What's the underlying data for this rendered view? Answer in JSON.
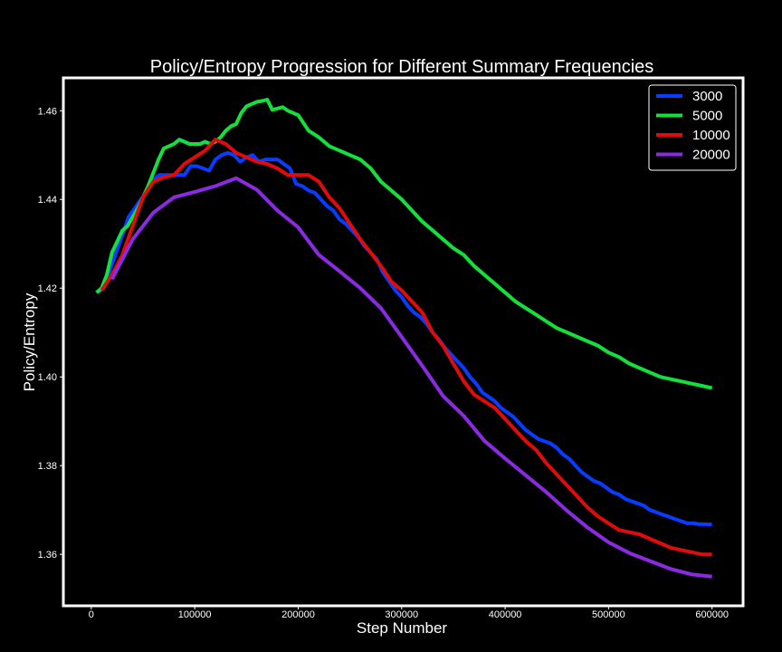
{
  "chart_data": {
    "type": "line",
    "title": "Policy/Entropy Progression for Different Summary Frequencies",
    "xlabel": "Step Number",
    "ylabel": "Policy/Entropy",
    "xlim": [
      -27000,
      630000
    ],
    "ylim": [
      1.3484,
      1.4674
    ],
    "x_ticks": [
      0,
      100000,
      200000,
      300000,
      400000,
      500000,
      600000
    ],
    "y_ticks": [
      1.36,
      1.38,
      1.4,
      1.42,
      1.44,
      1.46
    ],
    "grid": false,
    "legend_position": "top-right",
    "background": "#000000",
    "foreground": "#ffffff",
    "series": [
      {
        "name": "3000",
        "color": "#0a3cff",
        "x": [
          6000,
          12000,
          18000,
          24000,
          30000,
          36000,
          42000,
          48000,
          54000,
          60000,
          66000,
          72000,
          78000,
          84000,
          90000,
          96000,
          102000,
          108000,
          114000,
          120000,
          126000,
          132000,
          138000,
          144000,
          150000,
          156000,
          162000,
          168000,
          174000,
          180000,
          186000,
          192000,
          198000,
          204000,
          210000,
          216000,
          222000,
          228000,
          234000,
          240000,
          246000,
          252000,
          258000,
          264000,
          270000,
          276000,
          282000,
          288000,
          294000,
          300000,
          306000,
          312000,
          318000,
          324000,
          330000,
          336000,
          342000,
          348000,
          354000,
          360000,
          366000,
          372000,
          378000,
          384000,
          390000,
          396000,
          402000,
          408000,
          414000,
          420000,
          426000,
          432000,
          438000,
          444000,
          450000,
          456000,
          462000,
          468000,
          474000,
          480000,
          486000,
          492000,
          498000,
          504000,
          510000,
          516000,
          522000,
          528000,
          534000,
          540000,
          546000,
          552000,
          558000,
          564000,
          570000,
          576000,
          582000,
          588000,
          594000,
          600000
        ],
        "y": [
          1.419,
          1.42,
          1.424,
          1.428,
          1.432,
          1.436,
          1.438,
          1.44,
          1.442,
          1.4445,
          1.4455,
          1.4455,
          1.4455,
          1.4455,
          1.4455,
          1.4475,
          1.4475,
          1.447,
          1.4465,
          1.449,
          1.45,
          1.4505,
          1.45,
          1.4485,
          1.4495,
          1.45,
          1.4485,
          1.449,
          1.449,
          1.449,
          1.448,
          1.447,
          1.4435,
          1.443,
          1.442,
          1.4415,
          1.44,
          1.4385,
          1.4375,
          1.4355,
          1.4345,
          1.433,
          1.4315,
          1.4295,
          1.428,
          1.4265,
          1.4235,
          1.4215,
          1.4195,
          1.418,
          1.416,
          1.4145,
          1.4135,
          1.412,
          1.41,
          1.4085,
          1.4065,
          1.405,
          1.4035,
          1.402,
          1.4,
          1.3985,
          1.3965,
          1.3955,
          1.3945,
          1.393,
          1.392,
          1.391,
          1.3895,
          1.388,
          1.387,
          1.386,
          1.3855,
          1.385,
          1.384,
          1.3825,
          1.3815,
          1.38,
          1.3785,
          1.3775,
          1.3765,
          1.376,
          1.375,
          1.374,
          1.3735,
          1.3725,
          1.372,
          1.3715,
          1.371,
          1.37,
          1.3695,
          1.369,
          1.3685,
          1.368,
          1.3675,
          1.367,
          1.367,
          1.3668,
          1.3668,
          1.3667
        ]
      },
      {
        "name": "5000",
        "color": "#14e03c",
        "x": [
          5000,
          10000,
          15000,
          20000,
          25000,
          30000,
          35000,
          40000,
          45000,
          50000,
          55000,
          60000,
          65000,
          70000,
          75000,
          80000,
          85000,
          90000,
          95000,
          100000,
          105000,
          110000,
          115000,
          120000,
          125000,
          130000,
          135000,
          140000,
          145000,
          150000,
          155000,
          160000,
          165000,
          170000,
          175000,
          180000,
          185000,
          190000,
          195000,
          200000,
          210000,
          220000,
          230000,
          240000,
          250000,
          260000,
          270000,
          280000,
          290000,
          300000,
          310000,
          320000,
          330000,
          340000,
          350000,
          360000,
          370000,
          380000,
          390000,
          400000,
          410000,
          420000,
          430000,
          440000,
          450000,
          460000,
          470000,
          480000,
          490000,
          500000,
          510000,
          520000,
          530000,
          540000,
          550000,
          560000,
          570000,
          580000,
          590000,
          600000
        ],
        "y": [
          1.419,
          1.42,
          1.423,
          1.428,
          1.4305,
          1.433,
          1.434,
          1.436,
          1.438,
          1.4405,
          1.443,
          1.446,
          1.449,
          1.4515,
          1.452,
          1.4525,
          1.4535,
          1.453,
          1.4525,
          1.4525,
          1.4525,
          1.453,
          1.4525,
          1.453,
          1.454,
          1.4555,
          1.4565,
          1.457,
          1.4595,
          1.461,
          1.4615,
          1.462,
          1.4622,
          1.4625,
          1.4602,
          1.4605,
          1.4608,
          1.46,
          1.4595,
          1.459,
          1.4555,
          1.454,
          1.452,
          1.451,
          1.45,
          1.449,
          1.447,
          1.444,
          1.442,
          1.44,
          1.4375,
          1.435,
          1.433,
          1.431,
          1.429,
          1.4275,
          1.425,
          1.423,
          1.421,
          1.419,
          1.417,
          1.4155,
          1.414,
          1.4125,
          1.411,
          1.41,
          1.409,
          1.408,
          1.407,
          1.4055,
          1.4045,
          1.403,
          1.402,
          1.401,
          1.4,
          1.3995,
          1.399,
          1.3985,
          1.398,
          1.3975
        ]
      },
      {
        "name": "10000",
        "color": "#e00c0c",
        "x": [
          10000,
          20000,
          30000,
          40000,
          50000,
          60000,
          70000,
          80000,
          90000,
          100000,
          110000,
          120000,
          130000,
          140000,
          150000,
          160000,
          170000,
          180000,
          190000,
          200000,
          210000,
          220000,
          230000,
          240000,
          250000,
          260000,
          270000,
          280000,
          290000,
          300000,
          310000,
          320000,
          330000,
          340000,
          350000,
          360000,
          370000,
          380000,
          390000,
          400000,
          410000,
          420000,
          430000,
          440000,
          450000,
          460000,
          470000,
          480000,
          490000,
          500000,
          510000,
          520000,
          530000,
          540000,
          550000,
          560000,
          570000,
          580000,
          590000,
          600000
        ],
        "y": [
          1.4195,
          1.423,
          1.4275,
          1.434,
          1.4405,
          1.444,
          1.445,
          1.4455,
          1.448,
          1.4495,
          1.451,
          1.4535,
          1.4525,
          1.4505,
          1.4495,
          1.4485,
          1.448,
          1.447,
          1.4455,
          1.4455,
          1.4455,
          1.444,
          1.4405,
          1.438,
          1.4345,
          1.431,
          1.428,
          1.425,
          1.4215,
          1.4195,
          1.417,
          1.4145,
          1.41,
          1.407,
          1.403,
          1.399,
          1.396,
          1.3945,
          1.393,
          1.3905,
          1.388,
          1.3855,
          1.3835,
          1.3805,
          1.378,
          1.3755,
          1.373,
          1.3705,
          1.3685,
          1.367,
          1.3655,
          1.365,
          1.3645,
          1.3635,
          1.3625,
          1.3615,
          1.361,
          1.3605,
          1.36,
          1.36
        ]
      },
      {
        "name": "20000",
        "color": "#8a2be2",
        "x": [
          20000,
          40000,
          60000,
          80000,
          100000,
          120000,
          140000,
          160000,
          180000,
          200000,
          220000,
          240000,
          260000,
          280000,
          300000,
          320000,
          340000,
          360000,
          380000,
          400000,
          420000,
          440000,
          460000,
          480000,
          500000,
          520000,
          540000,
          560000,
          580000,
          600000
        ],
        "y": [
          1.422,
          1.431,
          1.437,
          1.4405,
          1.4417,
          1.443,
          1.4448,
          1.4422,
          1.4375,
          1.4337,
          1.4275,
          1.4238,
          1.42,
          1.4155,
          1.409,
          1.4025,
          1.3957,
          1.3912,
          1.3856,
          1.3816,
          1.3778,
          1.374,
          1.3698,
          1.366,
          1.3627,
          1.3603,
          1.3585,
          1.3567,
          1.3555,
          1.355
        ]
      }
    ]
  }
}
